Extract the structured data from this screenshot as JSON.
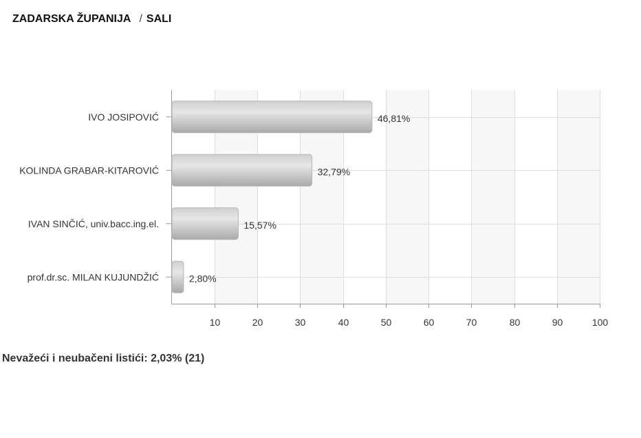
{
  "header": {
    "region": "ZADARSKA ŽUPANIJA",
    "separator": "/",
    "place": "SALI"
  },
  "colors": {
    "bar_light": "#dcdcdc",
    "bar_dark": "#a8a8a8",
    "grid": "#dddddd",
    "band": "#f7f7f7",
    "axis": "#999999"
  },
  "chart_data": {
    "type": "bar",
    "orientation": "horizontal",
    "categories": [
      "IVO JOSIPOVIĆ",
      "KOLINDA GRABAR-KITAROVIĆ",
      "IVAN SINČIĆ, univ.bacc.ing.el.",
      "prof.dr.sc. MILAN KUJUNDŽIĆ"
    ],
    "values": [
      46.81,
      32.79,
      15.57,
      2.8
    ],
    "data_labels": [
      "46,81%",
      "32,79%",
      "15,57%",
      "2,80%"
    ],
    "xlim": [
      0,
      100
    ],
    "xticks": [
      10,
      20,
      30,
      40,
      50,
      60,
      70,
      80,
      90,
      100
    ],
    "xtick_labels": [
      "10",
      "20",
      "30",
      "40",
      "50",
      "60",
      "70",
      "80",
      "90",
      "100"
    ],
    "grid": true,
    "title": "",
    "xlabel": "",
    "ylabel": ""
  },
  "footer": {
    "invalid_ballots": "Nevažeći i neubačeni listići: 2,03% (21)"
  }
}
